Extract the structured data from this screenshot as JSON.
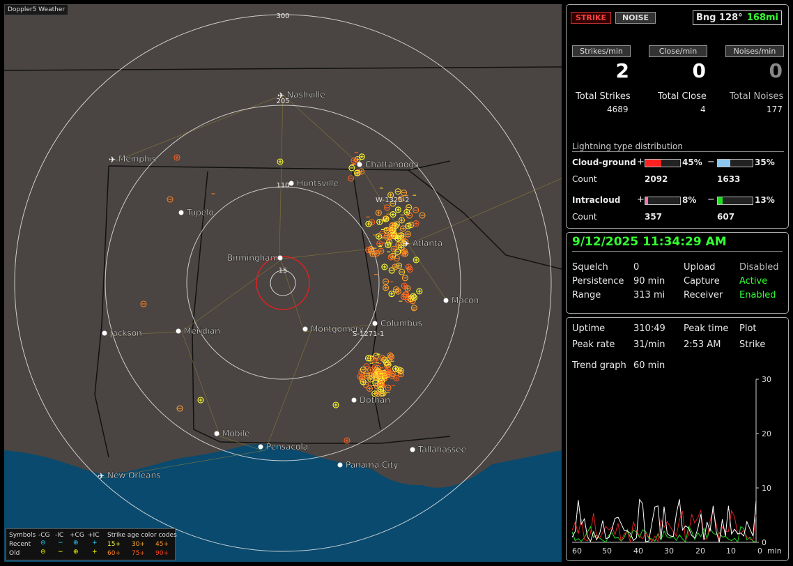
{
  "map": {
    "title": "Doppler5 Weather",
    "range_labels": [
      "300",
      "205",
      "110",
      "15"
    ],
    "sector_label": "W-1325-2",
    "sector_label_2": "S-1271-1",
    "cities": [
      {
        "name": "Nashville",
        "airport": true
      },
      {
        "name": "Memphis",
        "airport": true
      },
      {
        "name": "Chattanooga",
        "airport": false
      },
      {
        "name": "Huntsville",
        "airport": false
      },
      {
        "name": "Tupelo",
        "airport": false
      },
      {
        "name": "Atlanta",
        "airport": true
      },
      {
        "name": "Birmingham",
        "airport": false
      },
      {
        "name": "Macon",
        "airport": false
      },
      {
        "name": "Jackson",
        "airport": false
      },
      {
        "name": "Meridian",
        "airport": false
      },
      {
        "name": "Montgomery",
        "airport": false
      },
      {
        "name": "Columbus",
        "airport": false
      },
      {
        "name": "Dothan",
        "airport": false
      },
      {
        "name": "Mobile",
        "airport": false
      },
      {
        "name": "Pensacola",
        "airport": false
      },
      {
        "name": "Tallahassee",
        "airport": false
      },
      {
        "name": "Panama City",
        "airport": false
      },
      {
        "name": "New Orleans",
        "airport": true
      }
    ]
  },
  "legend": {
    "header": [
      "Symbols",
      "-CG",
      "-IC",
      "+CG",
      "+IC",
      "Strike age color codes"
    ],
    "recent": {
      "label": "Recent",
      "ages": [
        "15+",
        "30+",
        "45+"
      ]
    },
    "old": {
      "label": "Old",
      "ages": [
        "60+",
        "75+",
        "90+"
      ]
    }
  },
  "top": {
    "strike_btn": "STRIKE",
    "noise_btn": "NOISE",
    "bearing": "Bng 128°",
    "distance": "168mi",
    "col_labels": [
      "Strikes/min",
      "Close/min",
      "Noises/min"
    ],
    "col_values": [
      "2",
      "0",
      "0"
    ],
    "total_labels": [
      "Total Strikes",
      "Total Close",
      "Total Noises"
    ],
    "total_values": [
      "4689",
      "4",
      "177"
    ],
    "dist_title": "Lightning type distribution",
    "cg": {
      "label": "Cloud-ground",
      "pos_pct": "45%",
      "neg_pct": "35%",
      "count_label": "Count",
      "pos_count": "2092",
      "neg_count": "1633",
      "pos_frac": 0.45,
      "neg_frac": 0.35
    },
    "ic": {
      "label": "Intracloud",
      "pos_pct": "8%",
      "neg_pct": "13%",
      "count_label": "Count",
      "pos_count": "357",
      "neg_count": "607",
      "pos_frac": 0.08,
      "neg_frac": 0.13
    }
  },
  "status": {
    "datetime": "9/12/2025 11:34:29 AM",
    "squelch_l": "Squelch",
    "squelch_v": "0",
    "upload_l": "Upload",
    "upload_v": "Disabled",
    "persist_l": "Persistence",
    "persist_v": "90 min",
    "capture_l": "Capture",
    "capture_v": "Active",
    "range_l": "Range",
    "range_v": "313 mi",
    "receiver_l": "Receiver",
    "receiver_v": "Enabled"
  },
  "stats": {
    "uptime_l": "Uptime",
    "uptime_v": "310:49",
    "peaktime_l": "Peak time",
    "plot_l": "Plot",
    "peakrate_l": "Peak rate",
    "peakrate_v": "31/min",
    "peaktime_v": "2:53 AM",
    "plot_v": "Strike",
    "trend_l": "Trend graph",
    "trend_v": "60 min",
    "y_ticks": [
      "30",
      "20",
      "10",
      "0"
    ],
    "x_ticks": [
      "60",
      "50",
      "40",
      "30",
      "20",
      "10",
      "0"
    ],
    "x_unit": "min"
  },
  "colors": {
    "panel_border": "#aaaaaa",
    "accent_green": "#33ff33",
    "cg_pos": "#ff2020",
    "cg_neg": "#8cc8f0",
    "ic_pos": "#ff70b0",
    "ic_neg": "#22dd22",
    "map_land": "#4a4542",
    "map_water": "#0a4a6e"
  }
}
